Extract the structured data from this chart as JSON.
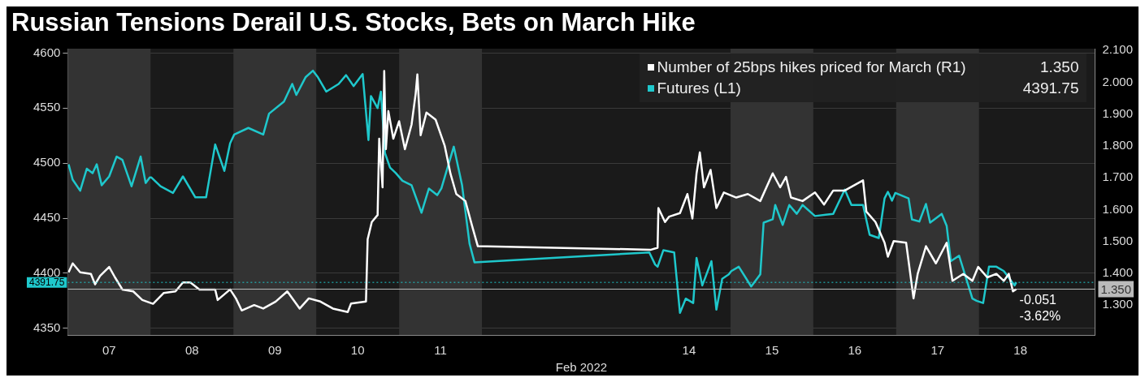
{
  "chart_data": {
    "type": "line",
    "title": "Russian Tensions Derail U.S. Stocks, Bets on March Hike",
    "xlabel": "Feb 2022",
    "xlim": [
      "2022-02-07T00:00",
      "2022-02-19T09:36"
    ],
    "xticks": [
      {
        "value": "2022-02-07T12:00",
        "label": "07"
      },
      {
        "value": "2022-02-08T12:00",
        "label": "08"
      },
      {
        "value": "2022-02-09T12:00",
        "label": "09"
      },
      {
        "value": "2022-02-10T12:00",
        "label": "10"
      },
      {
        "value": "2022-02-11T12:00",
        "label": "11"
      },
      {
        "value": "2022-02-14T12:00",
        "label": "14"
      },
      {
        "value": "2022-02-15T12:00",
        "label": "15"
      },
      {
        "value": "2022-02-16T12:00",
        "label": "16"
      },
      {
        "value": "2022-02-17T12:00",
        "label": "17"
      },
      {
        "value": "2022-02-18T12:00",
        "label": "18"
      }
    ],
    "ylim": [
      4344,
      4604
    ],
    "yticks": [
      4350,
      4400,
      4450,
      4500,
      4550,
      4600
    ],
    "y2lim": [
      1.206,
      2.106
    ],
    "y2ticks": [
      {
        "value": 1.3,
        "label": "1.300"
      },
      {
        "value": 1.4,
        "label": "1.400"
      },
      {
        "value": 1.5,
        "label": "1.500"
      },
      {
        "value": 1.6,
        "label": "1.600"
      },
      {
        "value": 1.7,
        "label": "1.700"
      },
      {
        "value": 1.8,
        "label": "1.800"
      },
      {
        "value": 1.9,
        "label": "1.900"
      },
      {
        "value": 2.0,
        "label": "2.000"
      },
      {
        "value": 2.1,
        "label": "2.100"
      }
    ],
    "grid": "y",
    "legend": "top right",
    "series": [
      {
        "name": "Number of 25bps hikes priced for March (R1)",
        "color": "#ffffff",
        "axis": "y2",
        "x": [
          "2022-02-07T00:15",
          "2022-02-07T01:26",
          "2022-02-07T03:36",
          "2022-02-07T06:43",
          "2022-02-07T07:55",
          "2022-02-07T09:22",
          "2022-02-07T12:00",
          "2022-02-07T13:41",
          "2022-02-07T15:50",
          "2022-02-07T18:58",
          "2022-02-07T21:36",
          "2022-02-08T00:43",
          "2022-02-08T03:50",
          "2022-02-08T07:12",
          "2022-02-08T09:22",
          "2022-02-08T11:31",
          "2022-02-08T14:10",
          "2022-02-08T18:43",
          "2022-02-08T19:26",
          "2022-02-08T23:02",
          "2022-02-09T00:43",
          "2022-02-09T02:24",
          "2022-02-09T06:00",
          "2022-02-09T08:38",
          "2022-02-09T12:14",
          "2022-02-09T15:36",
          "2022-02-09T19:12",
          "2022-02-09T21:50",
          "2022-02-10T01:12",
          "2022-02-10T04:48",
          "2022-02-10T09:07",
          "2022-02-10T10:05",
          "2022-02-10T14:24",
          "2022-02-10T14:53",
          "2022-02-10T16:05",
          "2022-02-10T17:46",
          "2022-02-10T18:14",
          "2022-02-10T19:12",
          "2022-02-10T19:41",
          "2022-02-10T20:10",
          "2022-02-10T20:53",
          "2022-02-10T22:19",
          "2022-02-11T00:00",
          "2022-02-11T01:41",
          "2022-02-11T03:36",
          "2022-02-11T04:48",
          "2022-02-11T05:17",
          "2022-02-11T06:14",
          "2022-02-11T07:55",
          "2022-02-11T10:34",
          "2022-02-11T13:12",
          "2022-02-11T14:53",
          "2022-02-11T16:34",
          "2022-02-11T19:12",
          "2022-02-11T21:07",
          "2022-02-11T22:48",
          "2022-02-14T00:58",
          "2022-02-14T02:53",
          "2022-02-14T03:07",
          "2022-02-14T05:02",
          "2022-02-14T06:14",
          "2022-02-14T09:22",
          "2022-02-14T11:31",
          "2022-02-14T12:58",
          "2022-02-14T14:10",
          "2022-02-14T15:07",
          "2022-02-14T16:19",
          "2022-02-14T18:14",
          "2022-02-14T19:55",
          "2022-02-14T22:05",
          "2022-02-15T01:41",
          "2022-02-15T05:02",
          "2022-02-15T08:38",
          "2022-02-15T12:14",
          "2022-02-15T14:24",
          "2022-02-15T16:05",
          "2022-02-15T17:31",
          "2022-02-15T20:53",
          "2022-02-16T00:29",
          "2022-02-16T03:07",
          "2022-02-16T05:46",
          "2022-02-16T09:07",
          "2022-02-16T14:24",
          "2022-02-16T15:22",
          "2022-02-16T18:00",
          "2022-02-16T20:38",
          "2022-02-16T21:36",
          "2022-02-16T23:17",
          "2022-02-17T02:53",
          "2022-02-17T05:02",
          "2022-02-17T06:14",
          "2022-02-17T08:38",
          "2022-02-17T11:31",
          "2022-02-17T14:38",
          "2022-02-17T16:19",
          "2022-02-17T19:26",
          "2022-02-17T22:05",
          "2022-02-17T23:46",
          "2022-02-18T02:24",
          "2022-02-18T05:02",
          "2022-02-18T07:12",
          "2022-02-18T08:38",
          "2022-02-18T09:50",
          "2022-02-18T10:48"
        ],
        "values": [
          1.403,
          1.431,
          1.403,
          1.398,
          1.365,
          1.392,
          1.42,
          1.387,
          1.349,
          1.343,
          1.316,
          1.304,
          1.338,
          1.343,
          1.371,
          1.371,
          1.349,
          1.349,
          1.316,
          1.349,
          1.321,
          1.283,
          1.3,
          1.289,
          1.311,
          1.343,
          1.289,
          1.321,
          1.311,
          1.289,
          1.278,
          1.305,
          1.311,
          1.507,
          1.561,
          1.583,
          1.823,
          1.67,
          2.036,
          1.79,
          1.91,
          1.823,
          1.878,
          1.79,
          1.867,
          1.965,
          2.025,
          1.834,
          1.905,
          1.883,
          1.801,
          1.713,
          1.649,
          1.627,
          1.55,
          1.485,
          1.474,
          1.48,
          1.605,
          1.561,
          1.578,
          1.589,
          1.649,
          1.572,
          1.714,
          1.78,
          1.67,
          1.725,
          1.605,
          1.654,
          1.638,
          1.649,
          1.627,
          1.714,
          1.67,
          1.703,
          1.638,
          1.627,
          1.654,
          1.616,
          1.66,
          1.66,
          1.692,
          1.594,
          1.561,
          1.496,
          1.452,
          1.501,
          1.496,
          1.321,
          1.398,
          1.485,
          1.431,
          1.496,
          1.376,
          1.398,
          1.376,
          1.42,
          1.387,
          1.398,
          1.376,
          1.398,
          1.343,
          1.35
        ]
      },
      {
        "name": "Futures  (L1)",
        "color": "#1fc8cc",
        "x": [
          "2022-02-07T00:15",
          "2022-02-07T01:26",
          "2022-02-07T03:36",
          "2022-02-07T05:31",
          "2022-02-07T07:12",
          "2022-02-07T08:24",
          "2022-02-07T09:50",
          "2022-02-07T12:00",
          "2022-02-07T14:10",
          "2022-02-07T15:50",
          "2022-02-07T18:29",
          "2022-02-07T21:07",
          "2022-02-07T22:34",
          "2022-02-07T23:46",
          "2022-02-08T00:14",
          "2022-02-08T02:53",
          "2022-02-08T06:29",
          "2022-02-08T09:22",
          "2022-02-08T12:58",
          "2022-02-08T16:05",
          "2022-02-08T18:43",
          "2022-02-08T21:22",
          "2022-02-08T23:02",
          "2022-02-09T00:14",
          "2022-02-09T04:19",
          "2022-02-09T08:38",
          "2022-02-09T10:19",
          "2022-02-09T14:38",
          "2022-02-09T17:02",
          "2022-02-09T18:14",
          "2022-02-09T20:53",
          "2022-02-09T23:02",
          "2022-02-10T00:29",
          "2022-02-10T02:53",
          "2022-02-10T06:29",
          "2022-02-10T08:38",
          "2022-02-10T10:48",
          "2022-02-10T13:26",
          "2022-02-10T15:07",
          "2022-02-10T15:50",
          "2022-02-10T17:46",
          "2022-02-10T18:43",
          "2022-02-10T19:55",
          "2022-02-10T21:22",
          "2022-02-10T23:02",
          "2022-02-11T00:58",
          "2022-02-11T03:36",
          "2022-02-11T06:29",
          "2022-02-11T08:38",
          "2022-02-11T11:02",
          "2022-02-11T12:14",
          "2022-02-11T15:50",
          "2022-02-11T18:14",
          "2022-02-11T20:24",
          "2022-02-11T21:50",
          "2022-02-14T00:29",
          "2022-02-14T02:10",
          "2022-02-14T02:53",
          "2022-02-14T04:34",
          "2022-02-14T07:41",
          "2022-02-14T09:22",
          "2022-02-14T11:02",
          "2022-02-14T13:12",
          "2022-02-14T14:10",
          "2022-02-14T15:50",
          "2022-02-14T18:29",
          "2022-02-14T19:55",
          "2022-02-14T21:36",
          "2022-02-14T23:31",
          "2022-02-15T00:14",
          "2022-02-15T02:24",
          "2022-02-15T06:00",
          "2022-02-15T08:38",
          "2022-02-15T09:36",
          "2022-02-15T12:14",
          "2022-02-15T12:58",
          "2022-02-15T15:07",
          "2022-02-15T17:02",
          "2022-02-15T19:12",
          "2022-02-15T20:53",
          "2022-02-16T00:29",
          "2022-02-16T05:46",
          "2022-02-16T09:07",
          "2022-02-16T11:02",
          "2022-02-16T14:24",
          "2022-02-16T16:19",
          "2022-02-16T18:58",
          "2022-02-16T20:38",
          "2022-02-16T21:36",
          "2022-02-16T22:48",
          "2022-02-16T23:46",
          "2022-02-17T03:36",
          "2022-02-17T04:34",
          "2022-02-17T06:43",
          "2022-02-17T08:38",
          "2022-02-17T09:50",
          "2022-02-17T13:12",
          "2022-02-17T14:38",
          "2022-02-17T15:50",
          "2022-02-17T18:14",
          "2022-02-17T22:05",
          "2022-02-17T23:17",
          "2022-02-18T01:12",
          "2022-02-18T02:53",
          "2022-02-18T05:02",
          "2022-02-18T07:12",
          "2022-02-18T10:19",
          "2022-02-18T10:48"
        ],
        "values": [
          4499,
          4485,
          4475,
          4495,
          4491,
          4499,
          4480,
          4488,
          4506,
          4503,
          4479,
          4506,
          4482,
          4487,
          4487,
          4479,
          4473,
          4488,
          4469,
          4469,
          4517,
          4493,
          4518,
          4526,
          4532,
          4526,
          4545,
          4556,
          4572,
          4562,
          4578,
          4584,
          4578,
          4565,
          4572,
          4580,
          4570,
          4581,
          4521,
          4561,
          4550,
          4565,
          4509,
          4496,
          4491,
          4484,
          4480,
          4455,
          4477,
          4471,
          4477,
          4515,
          4480,
          4427,
          4410,
          4419,
          4408,
          4406,
          4421,
          4419,
          4364,
          4377,
          4373,
          4414,
          4389,
          4411,
          4367,
          4395,
          4399,
          4402,
          4406,
          4388,
          4399,
          4446,
          4449,
          4462,
          4444,
          4462,
          4454,
          4462,
          4452,
          4454,
          4476,
          4462,
          4462,
          4435,
          4432,
          4468,
          4474,
          4466,
          4473,
          4468,
          4449,
          4447,
          4463,
          4446,
          4454,
          4443,
          4411,
          4416,
          4377,
          4375,
          4373,
          4406,
          4406,
          4402,
          4389,
          4391.75
        ]
      }
    ],
    "bands": [
      {
        "axis": "x",
        "from": "2022-02-07",
        "to": "2022-02-08",
        "color": "#333333"
      },
      {
        "axis": "x",
        "from": "2022-02-09",
        "to": "2022-02-10",
        "color": "#333333"
      },
      {
        "axis": "x",
        "from": "2022-02-11",
        "to": "2022-02-12",
        "color": "#333333"
      },
      {
        "axis": "x",
        "from": "2022-02-15",
        "to": "2022-02-16",
        "color": "#333333"
      },
      {
        "axis": "x",
        "from": "2022-02-17",
        "to": "2022-02-18",
        "color": "#333333"
      }
    ],
    "ref_lines": [
      {
        "axis": "y",
        "value": 4391.75,
        "label": "4391.75",
        "color": "#1fc8cc",
        "line_style": "dotted"
      },
      {
        "axis": "y2",
        "value": 1.35,
        "label": "1.350",
        "color": "#bbbbbb",
        "line_style": "solid"
      }
    ],
    "annotations": [
      "-0.051",
      "-3.62%"
    ]
  }
}
